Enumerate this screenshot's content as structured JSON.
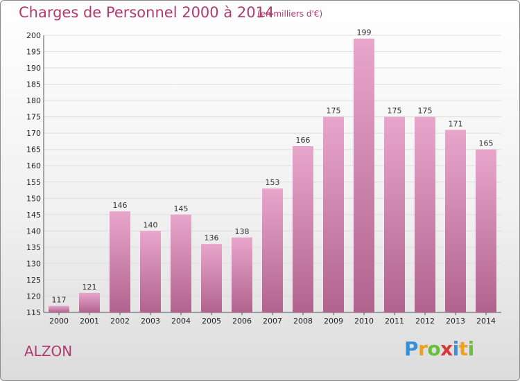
{
  "header": {
    "title": "Charges de Personnel 2000 à 2014",
    "subtitle": "(en milliers d'€)"
  },
  "commune": "ALZON",
  "logo": {
    "text": "Proxiti",
    "letters": [
      "P",
      "r",
      "o",
      "x",
      "i",
      "t",
      "i"
    ],
    "colors": [
      "#3a8fd6",
      "#f0a020",
      "#6abf3a",
      "#d83a3a",
      "#3a8fd6",
      "#f0a020",
      "#6abf3a"
    ]
  },
  "colors": {
    "bar_top": "#e8a6cb",
    "bar_bottom": "#b1638e",
    "title": "#b03a6e"
  },
  "chart_data": {
    "type": "bar",
    "title": "Charges de Personnel 2000 à 2014",
    "subtitle": "(en milliers d'€)",
    "categories": [
      "2000",
      "2001",
      "2002",
      "2003",
      "2004",
      "2005",
      "2006",
      "2007",
      "2008",
      "2009",
      "2010",
      "2011",
      "2012",
      "2013",
      "2014"
    ],
    "values": [
      117,
      121,
      146,
      140,
      145,
      136,
      138,
      153,
      166,
      175,
      199,
      175,
      175,
      171,
      165
    ],
    "ylim": [
      115,
      200
    ],
    "yticks": [
      115,
      120,
      125,
      130,
      135,
      140,
      145,
      150,
      155,
      160,
      165,
      170,
      175,
      180,
      185,
      190,
      195,
      200
    ],
    "grid": true,
    "data_labels": true
  }
}
